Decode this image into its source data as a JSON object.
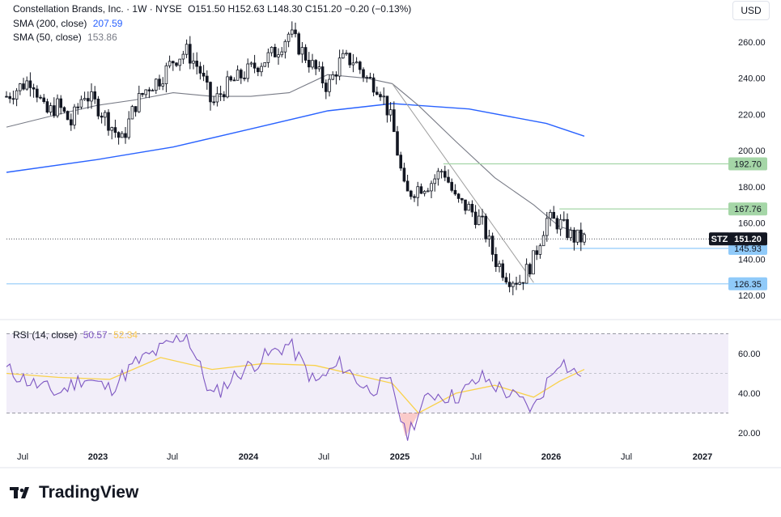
{
  "header": {
    "title": "Constellation Brands, Inc. · 1W · NYSE",
    "ohlc": "O151.50 H152.63 L148.30 C151.20 −0.20 (−0.13%)",
    "currency": "USD"
  },
  "indicators": {
    "sma200": {
      "label": "SMA (200, close)",
      "value": "207.59",
      "color": "#2962ff"
    },
    "sma50": {
      "label": "SMA (50, close)",
      "value": "153.86",
      "color": "#787b86"
    },
    "rsi": {
      "label": "RSI (14, close)",
      "value": "50.57",
      "ma_value": "52.34",
      "color": "#7e57c2",
      "ma_color": "#f9d14a"
    }
  },
  "brand": {
    "name": "TradingView"
  },
  "chart_data": [
    {
      "type": "candlestick",
      "symbol": "STZ",
      "last": 151.2,
      "last_label": "151.20",
      "ylim": [
        110,
        270
      ],
      "yticks": [
        "260.00",
        "240.00",
        "220.00",
        "200.00",
        "180.00",
        "160.00",
        "140.00",
        "120.00"
      ],
      "ytick_values": [
        260,
        240,
        220,
        200,
        180,
        160,
        140,
        120
      ],
      "x_labels": [
        "Jul",
        "2023",
        "Jul",
        "2024",
        "Jul",
        "2025",
        "Jul",
        "2026",
        "Jul",
        "2027"
      ],
      "levels": [
        {
          "value": 192.7,
          "label": "192.70",
          "color": "#a5d6a7",
          "start": "2025-04"
        },
        {
          "value": 167.76,
          "label": "167.76",
          "color": "#a5d6a7",
          "start": "2026-01"
        },
        {
          "value": 145.93,
          "label": "145.93",
          "color": "#90caf9",
          "start": "2026-01"
        },
        {
          "value": 126.35,
          "label": "126.35",
          "color": "#90caf9",
          "start": "2022-06"
        }
      ],
      "trendline": {
        "from": {
          "date": "2024-12",
          "value": 237
        },
        "to": {
          "date": "2025-11",
          "value": 127
        },
        "color": "#9e9e9e"
      },
      "close_series": {
        "dates": [
          "2022-06",
          "2022-07",
          "2022-08",
          "2022-09",
          "2022-10",
          "2022-11",
          "2022-12",
          "2023-01",
          "2023-02",
          "2023-03",
          "2023-04",
          "2023-05",
          "2023-06",
          "2023-07",
          "2023-08",
          "2023-09",
          "2023-10",
          "2023-11",
          "2023-12",
          "2024-01",
          "2024-02",
          "2024-03",
          "2024-04",
          "2024-05",
          "2024-06",
          "2024-07",
          "2024-08",
          "2024-09",
          "2024-10",
          "2024-11",
          "2024-12",
          "2025-01",
          "2025-02",
          "2025-03",
          "2025-04",
          "2025-05",
          "2025-06",
          "2025-07",
          "2025-08",
          "2025-09",
          "2025-10",
          "2025-11",
          "2025-12",
          "2026-01",
          "2026-02",
          "2026-03"
        ],
        "values": [
          230,
          235,
          240,
          220,
          225,
          215,
          232,
          225,
          215,
          205,
          225,
          235,
          240,
          250,
          255,
          245,
          225,
          235,
          240,
          245,
          250,
          255,
          265,
          255,
          245,
          235,
          250,
          250,
          240,
          235,
          215,
          175,
          180,
          182,
          190,
          172,
          168,
          160,
          140,
          130,
          128,
          140,
          162,
          160,
          152,
          151
        ]
      },
      "sma200": {
        "dates": [
          "2022-06",
          "2023-01",
          "2023-07",
          "2024-01",
          "2024-07",
          "2024-12",
          "2025-06",
          "2025-12",
          "2026-03"
        ],
        "values": [
          188,
          195,
          202,
          212,
          222,
          226,
          223,
          215,
          208
        ]
      },
      "sma50": {
        "dates": [
          "2022-06",
          "2022-10",
          "2023-01",
          "2023-04",
          "2023-07",
          "2023-10",
          "2024-01",
          "2024-04",
          "2024-07",
          "2024-10",
          "2024-12",
          "2025-02",
          "2025-05",
          "2025-08",
          "2025-11",
          "2026-01",
          "2026-03"
        ],
        "values": [
          213,
          220,
          225,
          228,
          232,
          230,
          230,
          232,
          242,
          240,
          237,
          225,
          205,
          185,
          170,
          158,
          154
        ]
      }
    },
    {
      "type": "line",
      "title": "RSI (14, close)",
      "ylim": [
        15,
        75
      ],
      "band": [
        30,
        70
      ],
      "midline": 50,
      "yticks": [
        "60.00",
        "40.00",
        "20.00"
      ],
      "ytick_values": [
        60,
        40,
        20
      ],
      "series": [
        {
          "name": "RSI",
          "dates": [
            "2022-06",
            "2022-08",
            "2022-10",
            "2022-12",
            "2023-02",
            "2023-04",
            "2023-06",
            "2023-08",
            "2023-10",
            "2023-12",
            "2024-02",
            "2024-04",
            "2024-06",
            "2024-08",
            "2024-10",
            "2024-12",
            "2025-01",
            "2025-03",
            "2025-05",
            "2025-07",
            "2025-09",
            "2025-11",
            "2026-01",
            "2026-02",
            "2026-03"
          ],
          "values": [
            52,
            45,
            40,
            48,
            42,
            55,
            62,
            70,
            38,
            50,
            58,
            65,
            45,
            55,
            42,
            45,
            18,
            40,
            38,
            48,
            40,
            32,
            58,
            50,
            51
          ]
        },
        {
          "name": "RSI MA",
          "dates": [
            "2022-06",
            "2022-10",
            "2023-02",
            "2023-06",
            "2023-10",
            "2024-02",
            "2024-06",
            "2024-10",
            "2024-12",
            "2025-02",
            "2025-05",
            "2025-08",
            "2025-11",
            "2026-01",
            "2026-03"
          ],
          "values": [
            50,
            48,
            47,
            58,
            52,
            55,
            54,
            48,
            45,
            30,
            40,
            44,
            38,
            46,
            52
          ]
        }
      ]
    }
  ]
}
